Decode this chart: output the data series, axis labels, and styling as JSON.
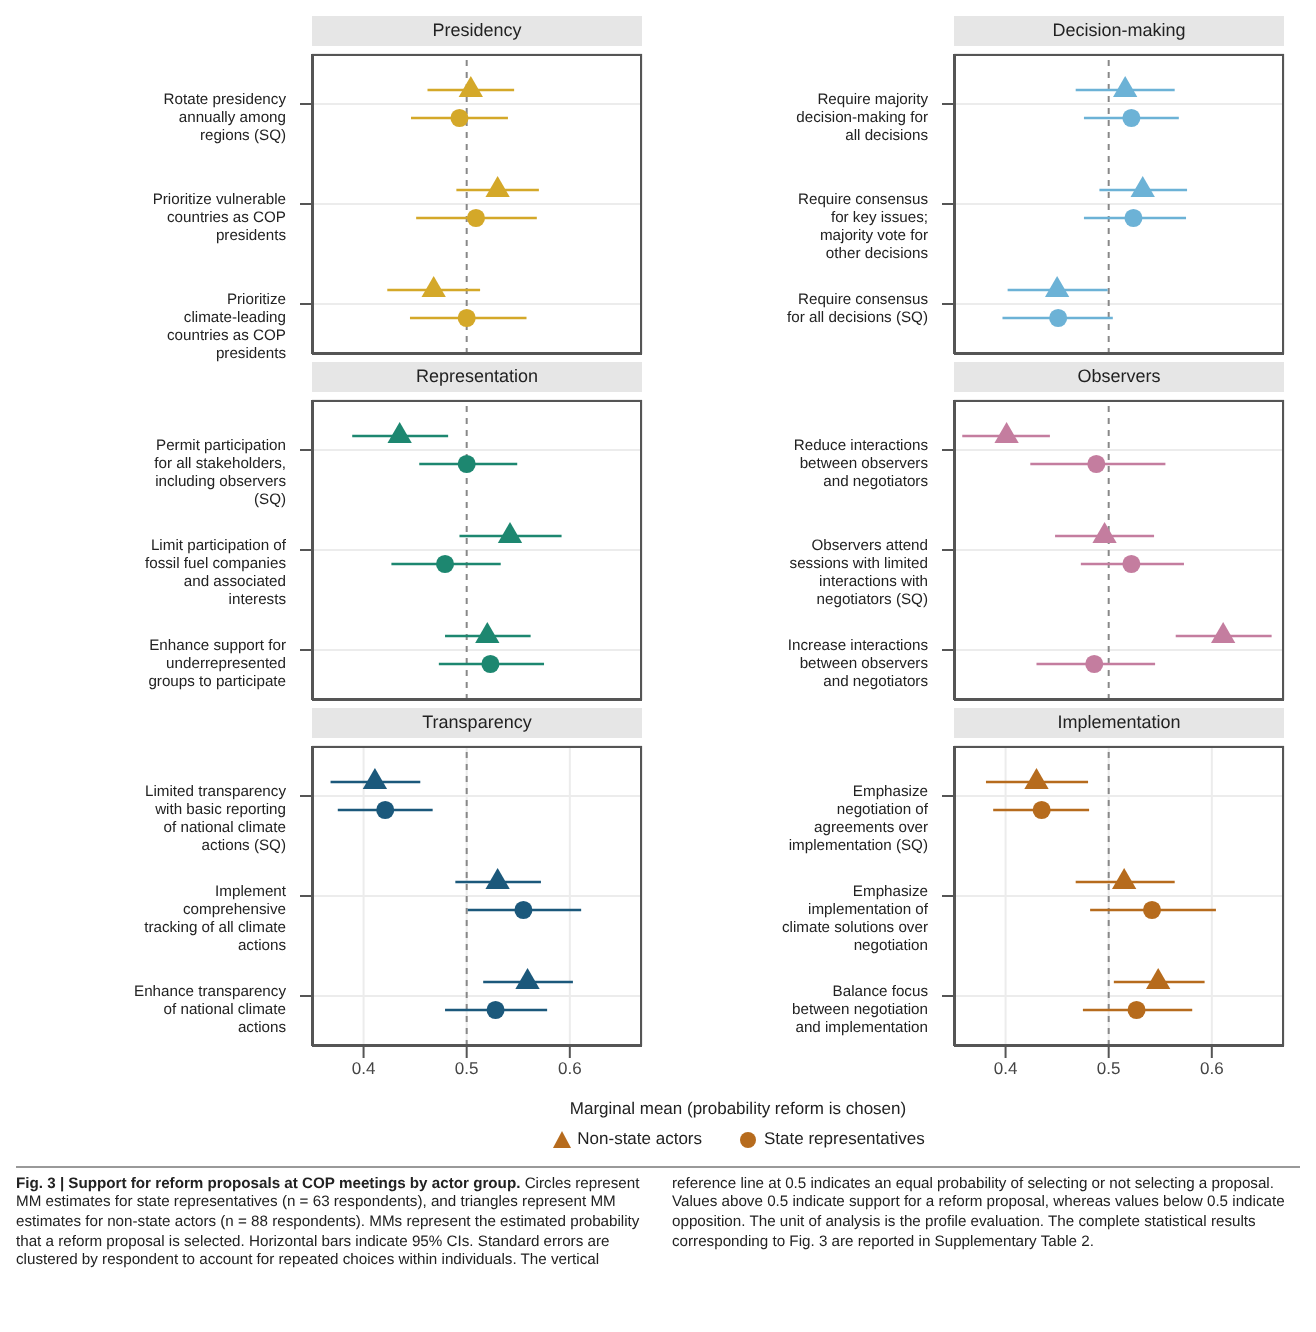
{
  "chart_data": [
    {
      "type": "scatter",
      "title": "Presidency",
      "categories": [
        "Rotate presidency annually among regions (SQ)",
        "Prioritize vulnerable countries as COP presidents",
        "Prioritize climate-leading countries as COP presidents"
      ],
      "orientation": "horizontal",
      "xlim": [
        0.35,
        0.67
      ],
      "xticks": [
        0.4,
        0.5,
        0.6
      ],
      "tick_labels": "y",
      "grid": true,
      "ref_lines": [
        {
          "axis": "x",
          "value": 0.5,
          "line_style": "dashed"
        }
      ],
      "series": [
        {
          "marker": "triangle",
          "color": "#d4a829",
          "values": [
            0.504,
            0.53,
            0.468
          ],
          "errors": [
            [
              0.462,
              0.546
            ],
            [
              0.49,
              0.57
            ],
            [
              0.423,
              0.513
            ]
          ]
        },
        {
          "marker": "circle",
          "color": "#d4a829",
          "values": [
            0.493,
            0.509,
            0.5
          ],
          "errors": [
            [
              0.446,
              0.54
            ],
            [
              0.451,
              0.568
            ],
            [
              0.445,
              0.558
            ]
          ]
        }
      ]
    },
    {
      "type": "scatter",
      "title": "Decision-making",
      "categories": [
        "Require majority decision-making for all decisions",
        "Require consensus for key issues; majority vote for other decisions",
        "Require consensus for all decisions (SQ)"
      ],
      "orientation": "horizontal",
      "xlim": [
        0.35,
        0.67
      ],
      "xticks": [
        0.4,
        0.5,
        0.6
      ],
      "tick_labels": "y",
      "grid": true,
      "ref_lines": [
        {
          "axis": "x",
          "value": 0.5,
          "line_style": "dashed"
        }
      ],
      "series": [
        {
          "marker": "triangle",
          "color": "#6cb2d6",
          "values": [
            0.516,
            0.533,
            0.45
          ],
          "errors": [
            [
              0.468,
              0.564
            ],
            [
              0.491,
              0.576
            ],
            [
              0.402,
              0.499
            ]
          ]
        },
        {
          "marker": "circle",
          "color": "#6cb2d6",
          "values": [
            0.522,
            0.524,
            0.451
          ],
          "errors": [
            [
              0.476,
              0.568
            ],
            [
              0.476,
              0.575
            ],
            [
              0.397,
              0.504
            ]
          ]
        }
      ]
    },
    {
      "type": "scatter",
      "title": "Representation",
      "categories": [
        "Permit participation for all stakeholders, including observers (SQ)",
        "Limit participation of fossil fuel companies and associated interests",
        "Enhance support for underrepresented groups to participate"
      ],
      "orientation": "horizontal",
      "xlim": [
        0.35,
        0.67
      ],
      "xticks": [
        0.4,
        0.5,
        0.6
      ],
      "tick_labels": "y",
      "grid": true,
      "ref_lines": [
        {
          "axis": "x",
          "value": 0.5,
          "line_style": "dashed"
        }
      ],
      "series": [
        {
          "marker": "triangle",
          "color": "#1d8770",
          "values": [
            0.435,
            0.542,
            0.52
          ],
          "errors": [
            [
              0.389,
              0.482
            ],
            [
              0.493,
              0.592
            ],
            [
              0.479,
              0.562
            ]
          ]
        },
        {
          "marker": "circle",
          "color": "#1d8770",
          "values": [
            0.5,
            0.479,
            0.523
          ],
          "errors": [
            [
              0.454,
              0.549
            ],
            [
              0.427,
              0.533
            ],
            [
              0.473,
              0.575
            ]
          ]
        }
      ]
    },
    {
      "type": "scatter",
      "title": "Observers",
      "categories": [
        "Reduce interactions between observers and negotiators",
        "Observers attend sessions with limited interactions with negotiators (SQ)",
        "Increase interactions between observers and negotiators"
      ],
      "orientation": "horizontal",
      "xlim": [
        0.35,
        0.67
      ],
      "xticks": [
        0.4,
        0.5,
        0.6
      ],
      "tick_labels": "y",
      "grid": true,
      "ref_lines": [
        {
          "axis": "x",
          "value": 0.5,
          "line_style": "dashed"
        }
      ],
      "series": [
        {
          "marker": "triangle",
          "color": "#c47d9f",
          "values": [
            0.401,
            0.496,
            0.611
          ],
          "errors": [
            [
              0.358,
              0.443
            ],
            [
              0.448,
              0.544
            ],
            [
              0.565,
              0.658
            ]
          ]
        },
        {
          "marker": "circle",
          "color": "#c47d9f",
          "values": [
            0.488,
            0.522,
            0.486
          ],
          "errors": [
            [
              0.424,
              0.555
            ],
            [
              0.473,
              0.573
            ],
            [
              0.43,
              0.545
            ]
          ]
        }
      ]
    },
    {
      "type": "scatter",
      "title": "Transparency",
      "categories": [
        "Limited transparency with basic reporting of national climate actions (SQ)",
        "Implement comprehensive tracking of all climate actions",
        "Enhance transparency of national climate actions"
      ],
      "orientation": "horizontal",
      "xlim": [
        0.35,
        0.67
      ],
      "xticks": [
        0.4,
        0.5,
        0.6
      ],
      "grid": true,
      "ref_lines": [
        {
          "axis": "x",
          "value": 0.5,
          "line_style": "dashed"
        }
      ],
      "series": [
        {
          "marker": "triangle",
          "color": "#1b587b",
          "values": [
            0.411,
            0.53,
            0.559
          ],
          "errors": [
            [
              0.368,
              0.455
            ],
            [
              0.489,
              0.572
            ],
            [
              0.516,
              0.603
            ]
          ]
        },
        {
          "marker": "circle",
          "color": "#1b587b",
          "values": [
            0.421,
            0.555,
            0.528
          ],
          "errors": [
            [
              0.375,
              0.467
            ],
            [
              0.501,
              0.611
            ],
            [
              0.479,
              0.578
            ]
          ]
        }
      ]
    },
    {
      "type": "scatter",
      "title": "Implementation",
      "categories": [
        "Emphasize negotiation of agreements over implementation (SQ)",
        "Emphasize implementation of climate solutions over negotiation",
        "Balance focus between negotiation and implementation"
      ],
      "orientation": "horizontal",
      "xlim": [
        0.35,
        0.67
      ],
      "xticks": [
        0.4,
        0.5,
        0.6
      ],
      "grid": true,
      "ref_lines": [
        {
          "axis": "x",
          "value": 0.5,
          "line_style": "dashed"
        }
      ],
      "xlabel": "Marginal mean (probability reform is chosen)",
      "legend": "bottom",
      "annotations": [
        "Fig. 3 | Support for reform proposals at COP meetings by actor group.",
        "Circles represent MM estimates for state representatives (n = 63 respondents), and triangles represent MM estimates for non-state actors (n = 88 respondents). MMs represent the estimated probability that a reform proposal is selected. Horizontal bars indicate 95% CIs. Standard errors are clustered by respondent to account for repeated choices within individuals. The vertical reference line at 0.5 indicates an equal probability of selecting or not selecting a proposal. Values above 0.5 indicate support for a reform proposal, whereas values below 0.5 indicate opposition. The unit of analysis is the profile evaluation. The complete statistical results corresponding to Fig. 3 are reported in Supplementary Table 2."
      ],
      "series": [
        {
          "name": "Non-state actors",
          "marker": "triangle",
          "color": "#b66b1d",
          "values": [
            0.43,
            0.515,
            0.548
          ],
          "errors": [
            [
              0.381,
              0.48
            ],
            [
              0.468,
              0.564
            ],
            [
              0.505,
              0.593
            ]
          ]
        },
        {
          "name": "State representatives",
          "marker": "circle",
          "color": "#b66b1d",
          "values": [
            0.435,
            0.542,
            0.527
          ],
          "errors": [
            [
              0.388,
              0.481
            ],
            [
              0.482,
              0.604
            ],
            [
              0.475,
              0.581
            ]
          ]
        }
      ]
    }
  ]
}
